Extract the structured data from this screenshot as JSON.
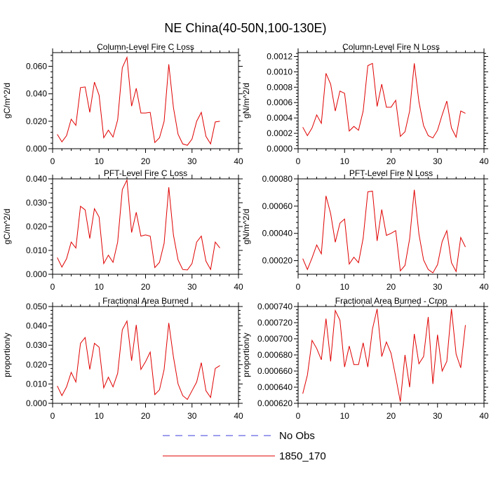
{
  "figure": {
    "title": "NE China(40-50N,100-130E)"
  },
  "legend": {
    "items": [
      {
        "label": "No Obs",
        "color": "#3b3bdc",
        "style": "dashed"
      },
      {
        "label": "1850_170",
        "color": "#e00000",
        "style": "solid"
      }
    ]
  },
  "chart_data": [
    {
      "type": "line",
      "title": "Column-Level Fire C Loss",
      "xlabel": "",
      "ylabel": "gC/m^2/d",
      "xlim": [
        0,
        40
      ],
      "ylim": [
        0,
        0.07
      ],
      "xticks": [
        0,
        10,
        20,
        30,
        40
      ],
      "xtick_labels": [
        "0",
        "10",
        "20",
        "30",
        "40"
      ],
      "yticks": [
        0,
        0.02,
        0.04,
        0.06
      ],
      "ytick_labels": [
        "0.000",
        "0.020",
        "0.040",
        "0.060"
      ],
      "grid": false,
      "series": [
        {
          "color": "#e00000",
          "x": [
            1,
            2,
            3,
            4,
            5,
            6,
            7,
            8,
            9,
            10,
            11,
            12,
            13,
            14,
            15,
            16,
            17,
            18,
            19,
            20,
            21,
            22,
            23,
            24,
            25,
            26,
            27,
            28,
            29,
            30,
            31,
            32,
            33,
            34,
            35,
            36
          ],
          "y": [
            0.0105,
            0.005,
            0.0095,
            0.0215,
            0.017,
            0.0445,
            0.045,
            0.0265,
            0.0485,
            0.039,
            0.008,
            0.0135,
            0.0085,
            0.021,
            0.059,
            0.0665,
            0.031,
            0.044,
            0.026,
            0.026,
            0.0265,
            0.0045,
            0.008,
            0.02,
            0.0615,
            0.03,
            0.0105,
            0.0035,
            0.0025,
            0.007,
            0.02,
            0.0265,
            0.009,
            0.0035,
            0.0195,
            0.02
          ]
        }
      ]
    },
    {
      "type": "line",
      "title": "Column-Level Fire N Loss",
      "xlabel": "",
      "ylabel": "gN/m^2/d",
      "xlim": [
        0,
        40
      ],
      "ylim": [
        0,
        0.00125
      ],
      "xticks": [
        0,
        10,
        20,
        30,
        40
      ],
      "xtick_labels": [
        "0",
        "10",
        "20",
        "30",
        "40"
      ],
      "yticks": [
        0,
        0.0002,
        0.0004,
        0.0006,
        0.0008,
        0.001,
        0.0012
      ],
      "ytick_labels": [
        "0.0000",
        "0.0002",
        "0.0004",
        "0.0006",
        "0.0008",
        "0.0010",
        "0.0012"
      ],
      "grid": false,
      "series": [
        {
          "color": "#e00000",
          "x": [
            1,
            2,
            3,
            4,
            5,
            6,
            7,
            8,
            9,
            10,
            11,
            12,
            13,
            14,
            15,
            16,
            17,
            18,
            19,
            20,
            21,
            22,
            23,
            24,
            25,
            26,
            27,
            28,
            29,
            30,
            31,
            32,
            33,
            34,
            35,
            36
          ],
          "y": [
            0.00028,
            0.00017,
            0.00027,
            0.00044,
            0.00033,
            0.00098,
            0.00084,
            0.00049,
            0.00075,
            0.00072,
            0.00023,
            0.00029,
            0.00024,
            0.00049,
            0.00108,
            0.00111,
            0.00055,
            0.00084,
            0.00054,
            0.00054,
            0.00063,
            0.00016,
            0.00022,
            0.00049,
            0.00111,
            0.00061,
            0.0003,
            0.00017,
            0.00014,
            0.00024,
            0.00044,
            0.00062,
            0.00027,
            0.00015,
            0.00049,
            0.00046
          ]
        }
      ]
    },
    {
      "type": "line",
      "title": "PFT-Level Fire C Loss",
      "xlabel": "",
      "ylabel": "gC/m^2/d",
      "xlim": [
        0,
        40
      ],
      "ylim": [
        0,
        0.04
      ],
      "xticks": [
        0,
        10,
        20,
        30,
        40
      ],
      "xtick_labels": [
        "0",
        "10",
        "20",
        "30",
        "40"
      ],
      "yticks": [
        0,
        0.01,
        0.02,
        0.03,
        0.04
      ],
      "ytick_labels": [
        "0.000",
        "0.010",
        "0.020",
        "0.030",
        "0.040"
      ],
      "grid": false,
      "series": [
        {
          "color": "#e00000",
          "x": [
            1,
            2,
            3,
            4,
            5,
            6,
            7,
            8,
            9,
            10,
            11,
            12,
            13,
            14,
            15,
            16,
            17,
            18,
            19,
            20,
            21,
            22,
            23,
            24,
            25,
            26,
            27,
            28,
            29,
            30,
            31,
            32,
            33,
            34,
            35,
            36
          ],
          "y": [
            0.007,
            0.003,
            0.0065,
            0.0135,
            0.011,
            0.0285,
            0.027,
            0.015,
            0.0275,
            0.024,
            0.0045,
            0.008,
            0.005,
            0.0135,
            0.0355,
            0.0395,
            0.0175,
            0.026,
            0.016,
            0.0165,
            0.016,
            0.0028,
            0.005,
            0.013,
            0.0365,
            0.0165,
            0.006,
            0.002,
            0.0018,
            0.0045,
            0.0135,
            0.016,
            0.0055,
            0.002,
            0.0135,
            0.011
          ]
        }
      ]
    },
    {
      "type": "line",
      "title": "PFT-Level Fire N Loss",
      "xlabel": "",
      "ylabel": "gN/m^2/d",
      "xlim": [
        0,
        40
      ],
      "ylim": [
        0.0001,
        0.0008
      ],
      "xticks": [
        0,
        10,
        20,
        30,
        40
      ],
      "xtick_labels": [
        "0",
        "10",
        "20",
        "30",
        "40"
      ],
      "yticks": [
        0.0002,
        0.0004,
        0.0006,
        0.0008
      ],
      "ytick_labels": [
        "0.00020",
        "0.00040",
        "0.00060",
        "0.00080"
      ],
      "grid": false,
      "series": [
        {
          "color": "#e00000",
          "x": [
            1,
            2,
            3,
            4,
            5,
            6,
            7,
            8,
            9,
            10,
            11,
            12,
            13,
            14,
            15,
            16,
            17,
            18,
            19,
            20,
            21,
            22,
            23,
            24,
            25,
            26,
            27,
            28,
            29,
            30,
            31,
            32,
            33,
            34,
            35,
            36
          ],
          "y": [
            0.000215,
            0.000135,
            0.00022,
            0.000315,
            0.00025,
            0.000675,
            0.000545,
            0.000335,
            0.000475,
            0.000505,
            0.000175,
            0.000225,
            0.000185,
            0.000365,
            0.000705,
            0.00071,
            0.000345,
            0.000575,
            0.000385,
            0.0004,
            0.00042,
            0.000125,
            0.000165,
            0.00036,
            0.00072,
            0.000395,
            0.000205,
            0.000135,
            0.00011,
            0.00017,
            0.00034,
            0.00042,
            0.000185,
            0.00012,
            0.00037,
            0.0003
          ]
        }
      ]
    },
    {
      "type": "line",
      "title": "Fractional Area Burned",
      "xlabel": "",
      "ylabel": "proportion/y",
      "xlim": [
        0,
        40
      ],
      "ylim": [
        0,
        0.05
      ],
      "xticks": [
        0,
        10,
        20,
        30,
        40
      ],
      "xtick_labels": [
        "0",
        "10",
        "20",
        "30",
        "40"
      ],
      "yticks": [
        0,
        0.01,
        0.02,
        0.03,
        0.04,
        0.05
      ],
      "ytick_labels": [
        "0.000",
        "0.010",
        "0.020",
        "0.030",
        "0.040",
        "0.050"
      ],
      "grid": false,
      "series": [
        {
          "color": "#e00000",
          "x": [
            1,
            2,
            3,
            4,
            5,
            6,
            7,
            8,
            9,
            10,
            11,
            12,
            13,
            14,
            15,
            16,
            17,
            18,
            19,
            20,
            21,
            22,
            23,
            24,
            25,
            26,
            27,
            28,
            29,
            30,
            31,
            32,
            33,
            34,
            35,
            36
          ],
          "y": [
            0.009,
            0.004,
            0.0085,
            0.016,
            0.011,
            0.031,
            0.034,
            0.0175,
            0.031,
            0.029,
            0.008,
            0.0135,
            0.0085,
            0.0155,
            0.038,
            0.0425,
            0.022,
            0.0405,
            0.0175,
            0.0215,
            0.0265,
            0.0045,
            0.007,
            0.0175,
            0.0415,
            0.024,
            0.01,
            0.004,
            0.002,
            0.0065,
            0.011,
            0.021,
            0.0065,
            0.003,
            0.018,
            0.0195
          ]
        }
      ]
    },
    {
      "type": "line",
      "title": "Fractional Area Burned - Crop",
      "xlabel": "",
      "ylabel": "proportion/y",
      "xlim": [
        0,
        40
      ],
      "ylim": [
        0.00062,
        0.00074
      ],
      "xticks": [
        0,
        10,
        20,
        30,
        40
      ],
      "xtick_labels": [
        "0",
        "10",
        "20",
        "30",
        "40"
      ],
      "yticks": [
        0.00062,
        0.00064,
        0.00066,
        0.00068,
        0.0007,
        0.00072,
        0.00074
      ],
      "ytick_labels": [
        "0.000620",
        "0.000640",
        "0.000660",
        "0.000680",
        "0.000700",
        "0.000720",
        "0.000740"
      ],
      "grid": false,
      "series": [
        {
          "color": "#e00000",
          "x": [
            1,
            2,
            3,
            4,
            5,
            6,
            7,
            8,
            9,
            10,
            11,
            12,
            13,
            14,
            15,
            16,
            17,
            18,
            19,
            20,
            21,
            22,
            23,
            24,
            25,
            26,
            27,
            28,
            29,
            30,
            31,
            32,
            33,
            34,
            35,
            36
          ],
          "y": [
            0.000632,
            0.000655,
            0.000698,
            0.000688,
            0.000674,
            0.000725,
            0.000672,
            0.000735,
            0.000723,
            0.000665,
            0.000691,
            0.000668,
            0.000668,
            0.000695,
            0.000665,
            0.000712,
            0.000737,
            0.000678,
            0.000696,
            0.000682,
            0.000653,
            0.000622,
            0.00068,
            0.00064,
            0.000706,
            0.000669,
            0.000678,
            0.000727,
            0.000644,
            0.000705,
            0.00066,
            0.000672,
            0.000737,
            0.000681,
            0.000664,
            0.000717
          ]
        }
      ]
    }
  ]
}
